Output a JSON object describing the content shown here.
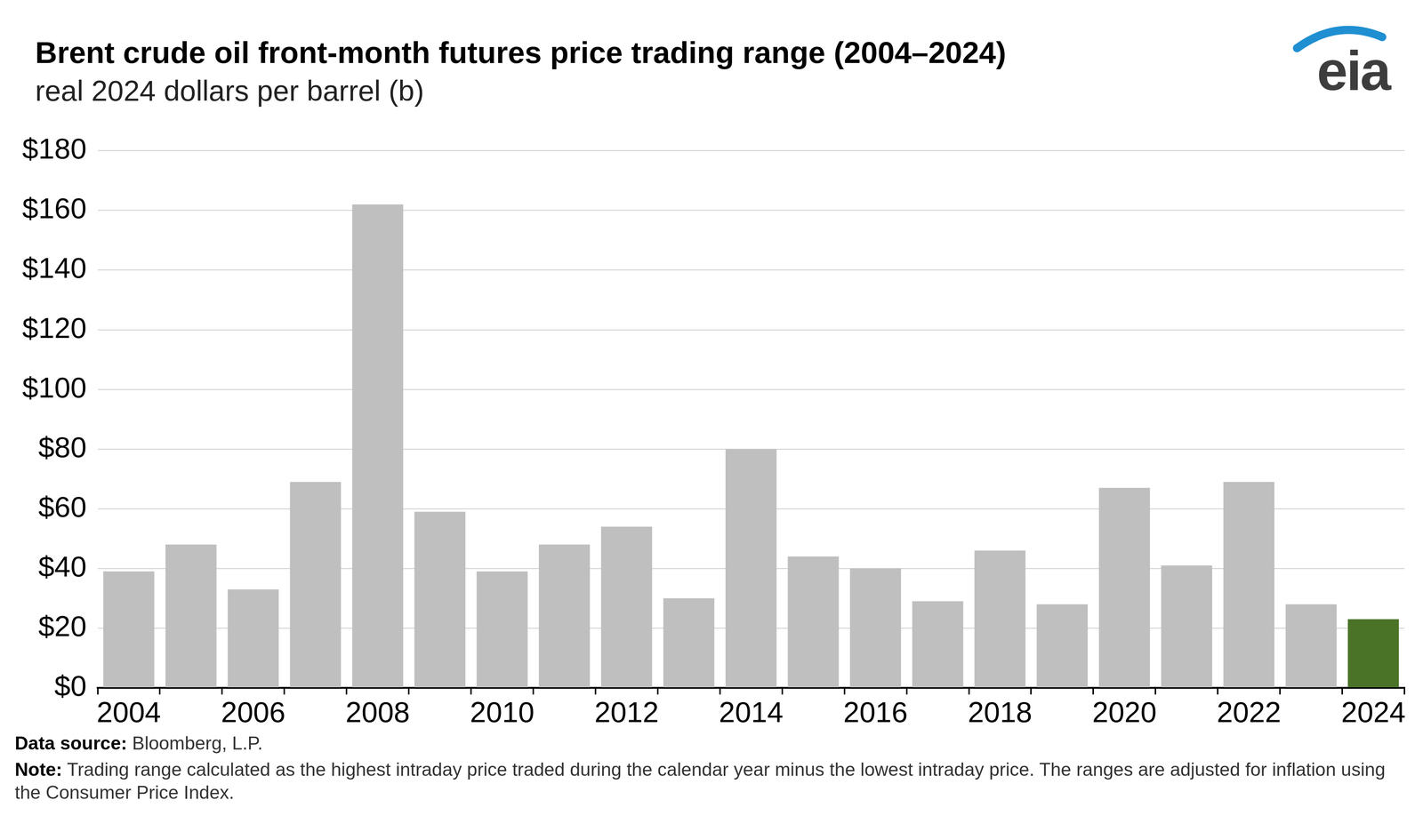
{
  "chart_data": {
    "type": "bar",
    "title": "Brent crude oil front-month futures price trading range (2004–2024)",
    "subtitle": "real 2024 dollars per barrel (b)",
    "logo": "eia",
    "categories": [
      "2004",
      null,
      "2006",
      null,
      "2008",
      null,
      "2010",
      null,
      "2012",
      null,
      "2014",
      null,
      "2016",
      null,
      "2018",
      null,
      "2020",
      null,
      "2022",
      null,
      "2024"
    ],
    "values": [
      39,
      48,
      33,
      69,
      162,
      59,
      39,
      48,
      54,
      30,
      80,
      44,
      40,
      29,
      46,
      28,
      67,
      41,
      69,
      28,
      23
    ],
    "colors": [
      "#bfbfbf",
      "#bfbfbf",
      "#bfbfbf",
      "#bfbfbf",
      "#bfbfbf",
      "#bfbfbf",
      "#bfbfbf",
      "#bfbfbf",
      "#bfbfbf",
      "#bfbfbf",
      "#bfbfbf",
      "#bfbfbf",
      "#bfbfbf",
      "#bfbfbf",
      "#bfbfbf",
      "#bfbfbf",
      "#bfbfbf",
      "#bfbfbf",
      "#bfbfbf",
      "#bfbfbf",
      "#4a7328"
    ],
    "ylim": [
      0,
      180
    ],
    "yticks": [
      {
        "value": 0,
        "label": "$0"
      },
      {
        "value": 20,
        "label": "$20"
      },
      {
        "value": 40,
        "label": "$40"
      },
      {
        "value": 60,
        "label": "$60"
      },
      {
        "value": 80,
        "label": "$80"
      },
      {
        "value": 100,
        "label": "$100"
      },
      {
        "value": 120,
        "label": "$120"
      },
      {
        "value": 140,
        "label": "$140"
      },
      {
        "value": 160,
        "label": "$160"
      },
      {
        "value": 180,
        "label": "$180"
      }
    ],
    "grid": true,
    "notes": [
      {
        "label": "Data source:",
        "text": "Bloomberg, L.P."
      },
      {
        "label": "Note:",
        "text": "Trading range calculated as the highest intraday price traded during the calendar year minus the lowest intraday price. The ranges are adjusted for inflation using the Consumer Price Index."
      }
    ]
  }
}
